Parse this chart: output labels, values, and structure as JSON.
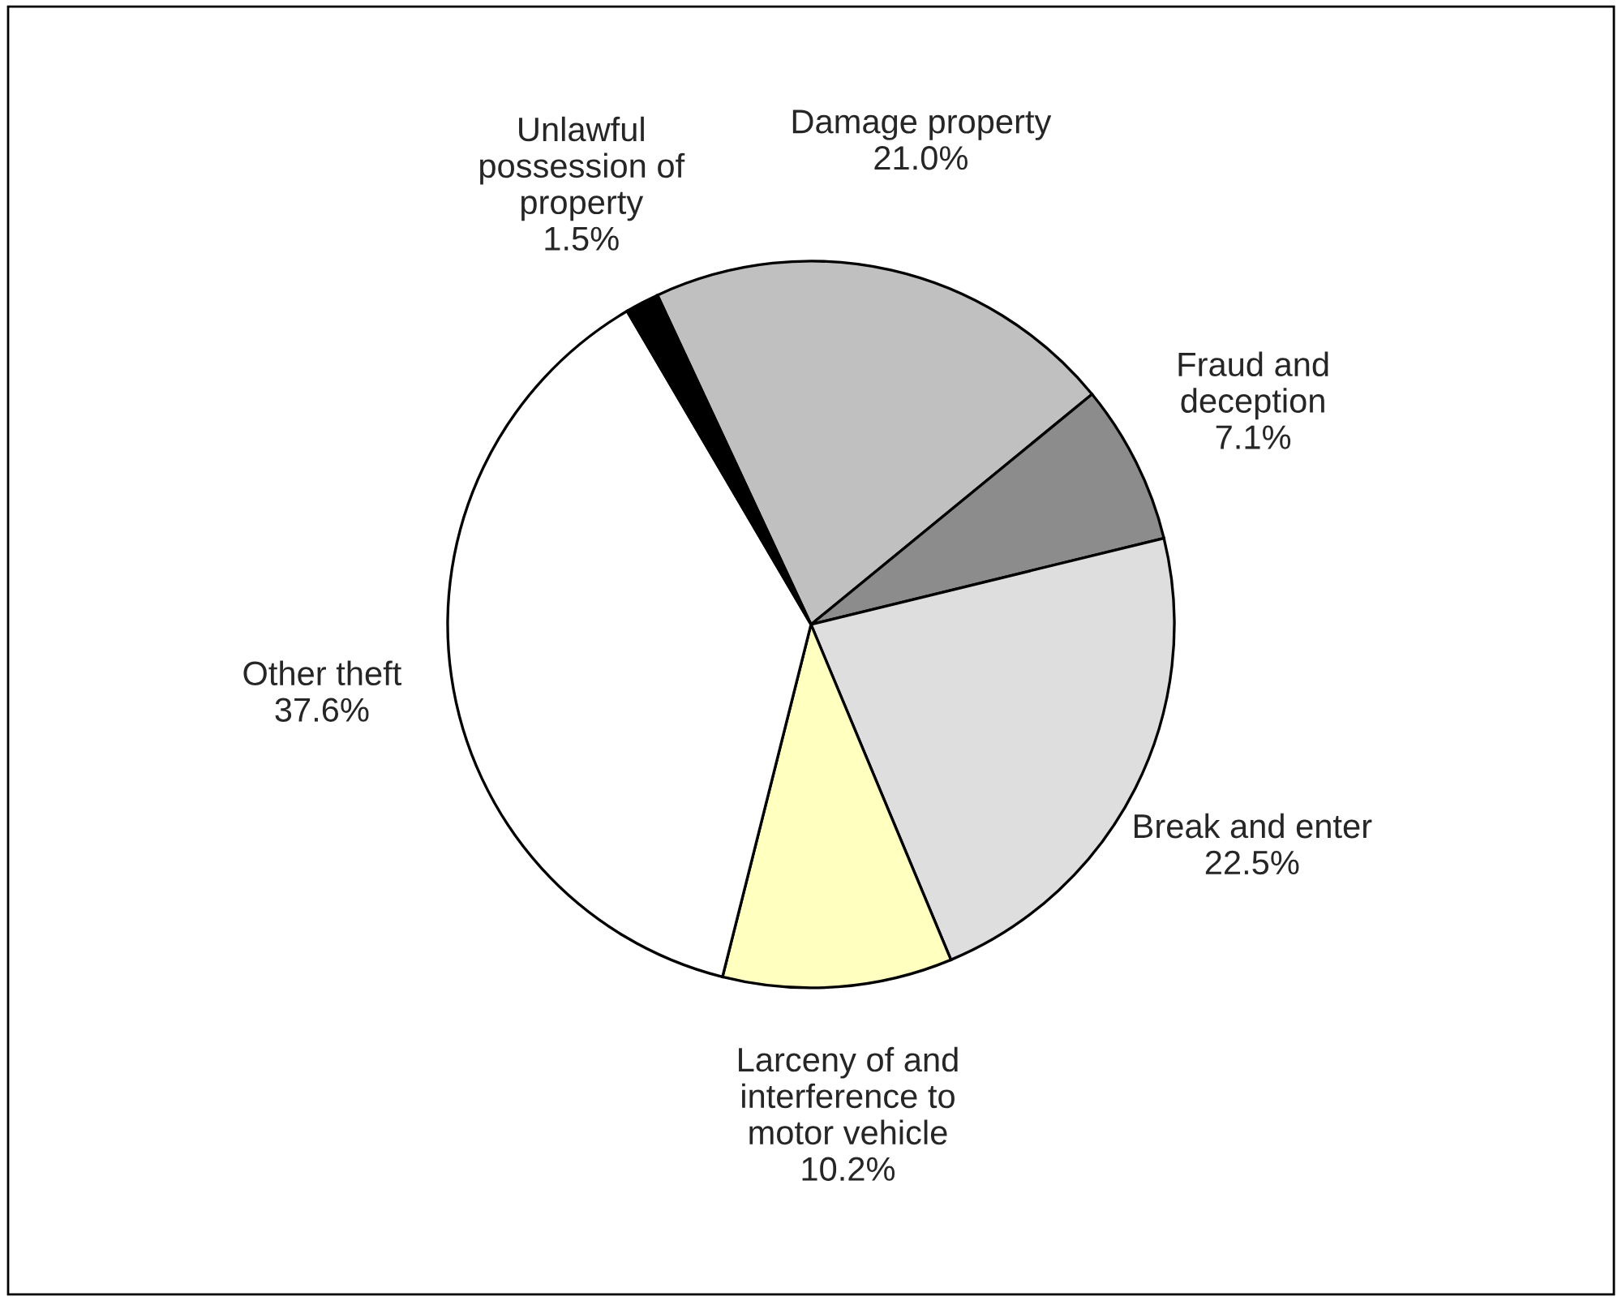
{
  "chart_data": {
    "type": "pie",
    "categories": [
      "Damage property",
      "Fraud and\ndeception",
      "Break and enter",
      "Larceny of and\ninterference to\nmotor vehicle",
      "Other theft",
      "Unlawful\npossession of\nproperty"
    ],
    "values": [
      21.0,
      7.1,
      22.5,
      10.2,
      37.6,
      1.5
    ],
    "value_labels": [
      "21.0%",
      "7.1%",
      "22.5%",
      "10.2%",
      "37.6%",
      "1.5%"
    ],
    "colors": [
      "#c0c0c0",
      "#8c8c8c",
      "#dedede",
      "#ffffc0",
      "#ffffff",
      "#000000"
    ]
  }
}
